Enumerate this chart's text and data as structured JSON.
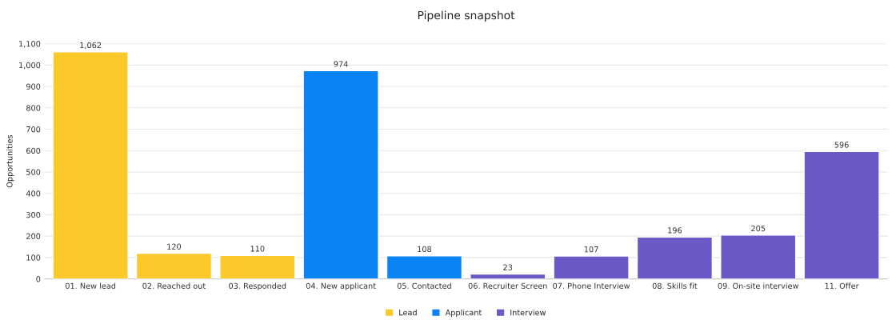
{
  "chart_data": {
    "type": "bar",
    "title": "Pipeline snapshot",
    "ylabel": "Opportunities",
    "categories": [
      "01. New lead",
      "02. Reached out",
      "03. Responded",
      "04. New applicant",
      "05. Contacted",
      "06. Recruiter Screen",
      "07. Phone Interview",
      "08. Skills fit",
      "09. On-site interview",
      "11. Offer"
    ],
    "series": [
      {
        "name": "Lead",
        "color": "#fcc92a",
        "values": [
          1062,
          120,
          110,
          null,
          null,
          null,
          null,
          null,
          null,
          null
        ],
        "value_labels": [
          "1,062",
          "120",
          "110",
          null,
          null,
          null,
          null,
          null,
          null,
          null
        ]
      },
      {
        "name": "Applicant",
        "color": "#0a84f5",
        "values": [
          null,
          null,
          null,
          974,
          108,
          null,
          null,
          null,
          null,
          null
        ],
        "value_labels": [
          null,
          null,
          null,
          "974",
          "108",
          null,
          null,
          null,
          null,
          null
        ]
      },
      {
        "name": "Interview",
        "color": "#6a5ac8",
        "values": [
          null,
          null,
          null,
          null,
          null,
          23,
          107,
          196,
          205,
          596
        ],
        "value_labels": [
          null,
          null,
          null,
          null,
          null,
          "23",
          "107",
          "196",
          "205",
          "596"
        ]
      }
    ],
    "ylim": [
      0,
      1100
    ],
    "yticks": [
      0,
      100,
      200,
      300,
      400,
      500,
      600,
      700,
      800,
      900,
      {
        "value": 1000,
        "label": "1,000"
      },
      {
        "value": 1100,
        "label": "1,100"
      }
    ],
    "grid": "y",
    "legend": "bottom"
  }
}
